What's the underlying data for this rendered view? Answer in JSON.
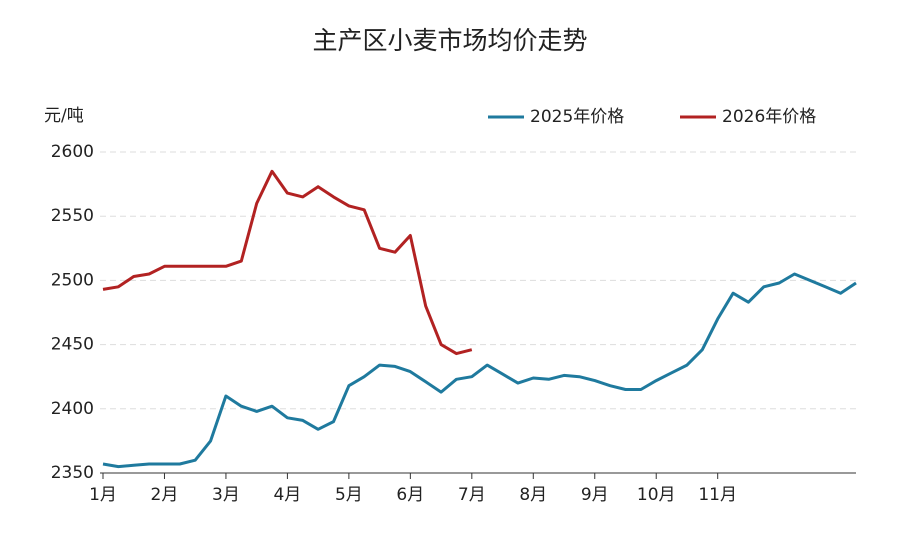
{
  "chart_data": {
    "type": "line",
    "title": "主产区小麦市场均价走势",
    "y_label": "元/吨",
    "categories": [
      "1月",
      null,
      null,
      null,
      "2月",
      null,
      null,
      null,
      "3月",
      null,
      null,
      null,
      "4月",
      null,
      null,
      null,
      "5月",
      null,
      null,
      null,
      "6月",
      null,
      null,
      null,
      "7月",
      null,
      null,
      null,
      "8月",
      null,
      null,
      null,
      "9月",
      null,
      null,
      null,
      "10月",
      null,
      null,
      null,
      "11月",
      null,
      null,
      null,
      null,
      null,
      null,
      null,
      null,
      null
    ],
    "series": [
      {
        "name": "2025年价格",
        "color": "#1f7a9e",
        "values": [
          2357,
          2355,
          2356,
          2357,
          2357,
          2357,
          2360,
          2375,
          2410,
          2402,
          2398,
          2402,
          2393,
          2391,
          2384,
          2390,
          2418,
          2425,
          2434,
          2433,
          2429,
          2421,
          2413,
          2423,
          2425,
          2434,
          2427,
          2420,
          2424,
          2423,
          2426,
          2425,
          2422,
          2418,
          2415,
          2415,
          2422,
          2428,
          2434,
          2446,
          2470,
          2490,
          2483,
          2495,
          2498,
          2505,
          2500,
          2495,
          2490,
          2498
        ]
      },
      {
        "name": "2026年价格",
        "color": "#b22222",
        "values": [
          2493,
          2495,
          2503,
          2505,
          2511,
          2511,
          2511,
          2511,
          2511,
          2515,
          2560,
          2585,
          2568,
          2565,
          2573,
          2565,
          2558,
          2555,
          2525,
          2522,
          2535,
          2480,
          2450,
          2443,
          2446,
          null,
          null,
          null,
          null,
          null,
          null,
          null,
          null,
          null,
          null,
          null,
          null,
          null,
          null,
          null,
          null,
          null,
          null,
          null,
          null,
          null,
          null,
          null,
          null,
          null
        ]
      }
    ],
    "ylim": [
      2350,
      2600
    ],
    "yticks": [
      2350,
      2400,
      2450,
      2500,
      2550,
      2600
    ],
    "grid": true,
    "legend": "top-right"
  }
}
